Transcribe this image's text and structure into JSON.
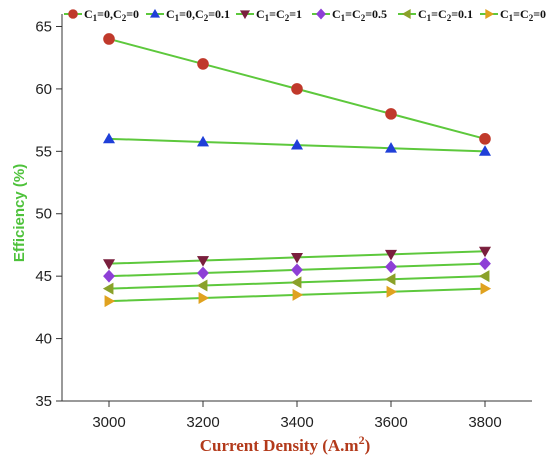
{
  "chart_data": {
    "type": "line",
    "x": [
      3000,
      3200,
      3400,
      3600,
      3800
    ],
    "xlim": [
      2900,
      3900
    ],
    "ylim": [
      35,
      66
    ],
    "xticks": [
      3000,
      3200,
      3400,
      3600,
      3800
    ],
    "yticks": [
      35,
      40,
      45,
      50,
      55,
      60,
      65
    ],
    "xlabel": "Current Density (A.m",
    "xlabel_sup": "2",
    "xlabel_end": ")",
    "ylabel": "Efficiency (%)",
    "grid": false,
    "legend_placement": "top",
    "line_color": "#5dc83c",
    "series": [
      {
        "label_parts": [
          "C",
          "1",
          "=0,C",
          "2",
          "=0"
        ],
        "marker": "circle",
        "color": "#c0392b",
        "values": [
          64,
          62,
          60,
          58,
          56
        ]
      },
      {
        "label_parts": [
          "C",
          "1",
          "=0,C",
          "2",
          "=0.1"
        ],
        "marker": "triangle-up",
        "color": "#1f3fd8",
        "values": [
          56,
          55.75,
          55.5,
          55.25,
          55
        ]
      },
      {
        "label_parts": [
          "C",
          "1",
          "=C",
          "2",
          "=1"
        ],
        "marker": "triangle-down",
        "color": "#7a1f3d",
        "values": [
          46,
          46.25,
          46.5,
          46.75,
          47
        ]
      },
      {
        "label_parts": [
          "C",
          "1",
          "=C",
          "2",
          "=0.5"
        ],
        "marker": "diamond",
        "color": "#8e3fd6",
        "values": [
          45,
          45.25,
          45.5,
          45.75,
          46
        ]
      },
      {
        "label_parts": [
          "C",
          "1",
          "=C",
          "2",
          "=0.1"
        ],
        "marker": "triangle-left",
        "color": "#8aa12a",
        "values": [
          44,
          44.25,
          44.5,
          44.75,
          45
        ]
      },
      {
        "label_parts": [
          "C",
          "1",
          "=C",
          "2",
          "=0"
        ],
        "marker": "triangle-right",
        "color": "#e0a21f",
        "values": [
          43,
          43.25,
          43.5,
          43.75,
          44
        ]
      }
    ]
  }
}
